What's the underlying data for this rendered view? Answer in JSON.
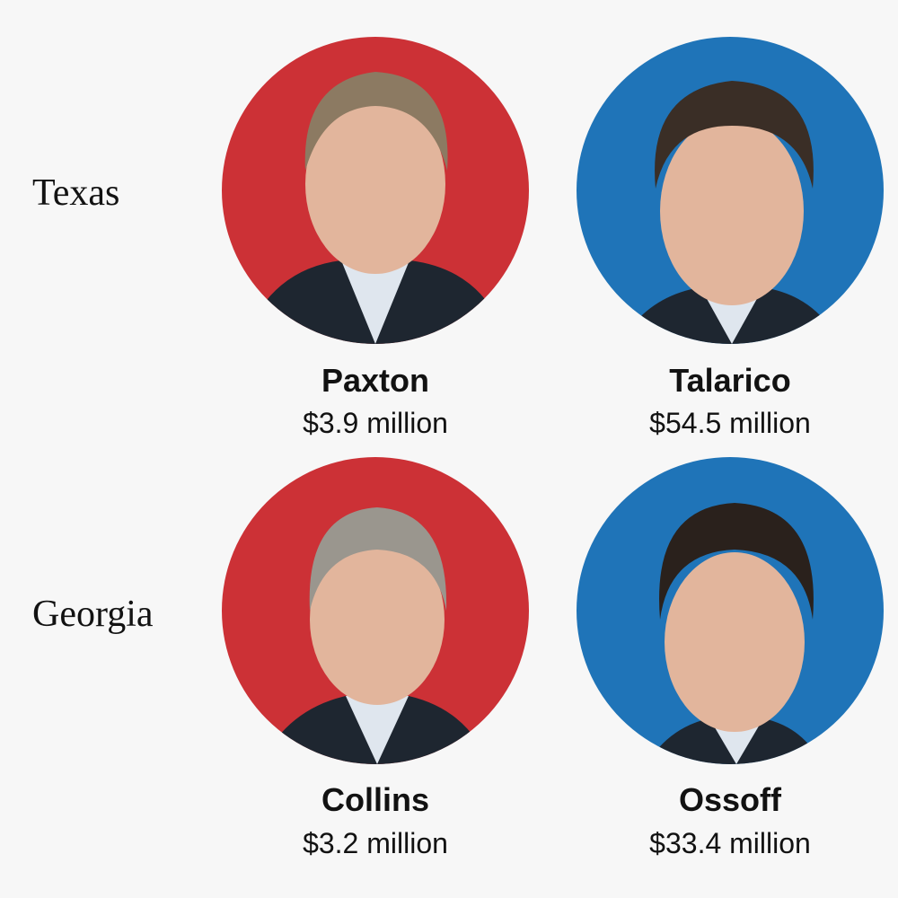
{
  "rows": [
    {
      "state": "Texas",
      "candidates": [
        {
          "name": "Paxton",
          "amount": "$3.9 million"
        },
        {
          "name": "Talarico",
          "amount": "$54.5 million"
        }
      ]
    },
    {
      "state": "Georgia",
      "candidates": [
        {
          "name": "Collins",
          "amount": "$3.2 million"
        },
        {
          "name": "Ossoff",
          "amount": "$33.4 million"
        }
      ]
    }
  ]
}
